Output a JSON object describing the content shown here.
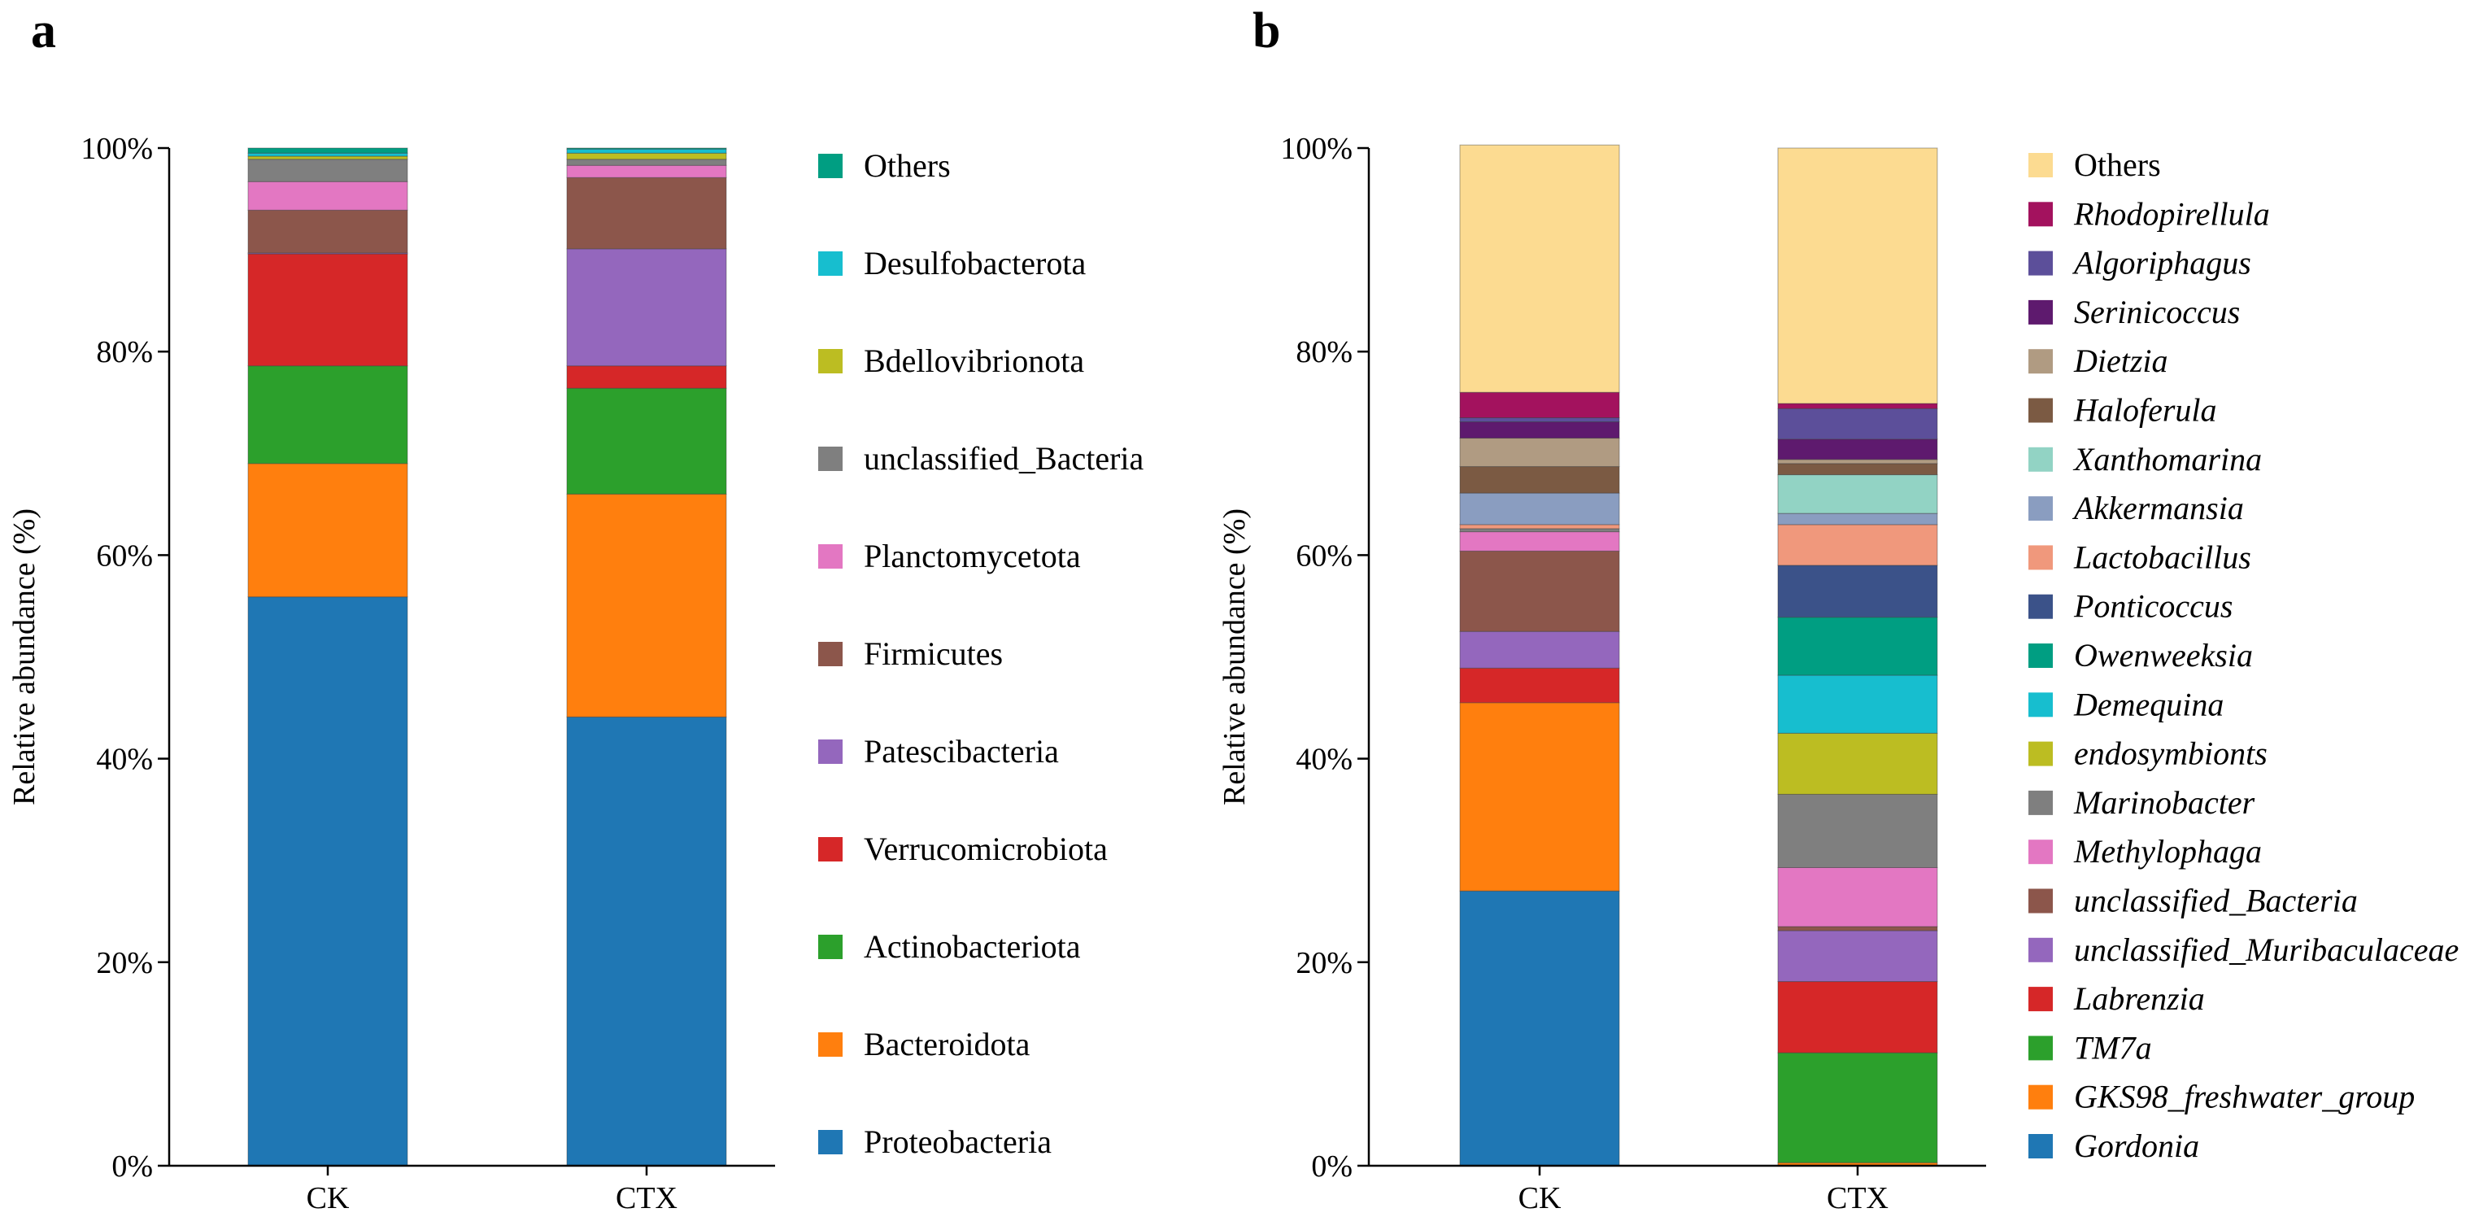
{
  "panels": {
    "a": {
      "label": "a"
    },
    "b": {
      "label": "b"
    }
  },
  "chart_data": [
    {
      "type": "bar",
      "stacked": true,
      "panel": "a",
      "ylabel": "Relative abundance (%)",
      "ylim": [
        0,
        100
      ],
      "yticks": [
        "0%",
        "20%",
        "40%",
        "60%",
        "80%",
        "100%"
      ],
      "categories": [
        "CK",
        "CTX"
      ],
      "legend_position": "right",
      "series": [
        {
          "name": "Proteobacteria",
          "color": "#1f77b4",
          "values": [
            55.9,
            44.1
          ]
        },
        {
          "name": "Bacteroidota",
          "color": "#ff7f0e",
          "values": [
            13.1,
            21.9
          ]
        },
        {
          "name": "Actinobacteriota",
          "color": "#2ca02c",
          "values": [
            9.6,
            10.4
          ]
        },
        {
          "name": "Verrucomicrobiota",
          "color": "#d62728",
          "values": [
            11.0,
            2.2
          ]
        },
        {
          "name": "Patescibacteria",
          "color": "#9467bd",
          "values": [
            0.1,
            11.5
          ]
        },
        {
          "name": "Firmicutes",
          "color": "#8c564b",
          "values": [
            4.2,
            7.0
          ]
        },
        {
          "name": "Planctomycetota",
          "color": "#e377c2",
          "values": [
            2.8,
            1.2
          ]
        },
        {
          "name": "unclassified_Bacteria",
          "color": "#7f7f7f",
          "values": [
            2.2,
            0.6
          ]
        },
        {
          "name": "Bdellovibrionota",
          "color": "#bcbd22",
          "values": [
            0.3,
            0.6
          ]
        },
        {
          "name": "Desulfobacterota",
          "color": "#17becf",
          "values": [
            0.3,
            0.4
          ]
        },
        {
          "name": "Others",
          "color": "#009e82",
          "values": [
            0.5,
            0.1
          ]
        }
      ]
    },
    {
      "type": "bar",
      "stacked": true,
      "panel": "b",
      "ylabel": "Relative abundance (%)",
      "ylim": [
        0,
        100
      ],
      "yticks": [
        "0%",
        "20%",
        "40%",
        "60%",
        "80%",
        "100%"
      ],
      "categories": [
        "CK",
        "CTX"
      ],
      "legend_position": "right",
      "series": [
        {
          "name": "Gordonia",
          "color": "#1f77b4",
          "values": [
            27.0,
            0.0
          ]
        },
        {
          "name": "GKS98_freshwater_group",
          "color": "#ff7f0e",
          "values": [
            18.5,
            0.3
          ]
        },
        {
          "name": "TM7a",
          "color": "#2ca02c",
          "values": [
            0.0,
            10.8
          ]
        },
        {
          "name": "Labrenzia",
          "color": "#d62728",
          "values": [
            3.4,
            7.0
          ]
        },
        {
          "name": "unclassified_Muribaculaceae",
          "color": "#9467bd",
          "values": [
            3.6,
            5.0
          ]
        },
        {
          "name": "unclassified_Bacteria",
          "color": "#8c564b",
          "values": [
            7.9,
            0.4
          ]
        },
        {
          "name": "Methylophaga",
          "color": "#e377c2",
          "values": [
            1.9,
            5.8
          ]
        },
        {
          "name": "Marinobacter",
          "color": "#7f7f7f",
          "values": [
            0.3,
            7.2
          ]
        },
        {
          "name": "endosymbionts",
          "color": "#bcbd22",
          "values": [
            0.0,
            6.0
          ]
        },
        {
          "name": "Demequina",
          "color": "#17becf",
          "values": [
            0.0,
            5.7
          ]
        },
        {
          "name": "Owenweeksia",
          "color": "#009e82",
          "values": [
            0.0,
            5.7
          ]
        },
        {
          "name": "Ponticoccus",
          "color": "#3b5289",
          "values": [
            0.0,
            5.1
          ]
        },
        {
          "name": "Lactobacillus",
          "color": "#f0987c",
          "values": [
            0.4,
            4.0
          ]
        },
        {
          "name": "Akkermansia",
          "color": "#8a9dc0",
          "values": [
            3.1,
            1.1
          ]
        },
        {
          "name": "Xanthomarina",
          "color": "#92d3c4",
          "values": [
            0.0,
            3.8
          ]
        },
        {
          "name": "Haloferula",
          "color": "#7b5a43",
          "values": [
            2.6,
            1.1
          ]
        },
        {
          "name": "Dietzia",
          "color": "#b09b82",
          "values": [
            2.8,
            0.4
          ]
        },
        {
          "name": "Serinicoccus",
          "color": "#5e1a6e",
          "values": [
            1.6,
            2.0
          ]
        },
        {
          "name": "Algoriphagus",
          "color": "#5c4f9a",
          "values": [
            0.4,
            3.0
          ]
        },
        {
          "name": "Rhodopirellula",
          "color": "#a3125e",
          "values": [
            2.5,
            0.5
          ]
        },
        {
          "name": "Others",
          "color": "#fcdb91",
          "values": [
            24.3,
            25.1
          ]
        }
      ]
    }
  ]
}
